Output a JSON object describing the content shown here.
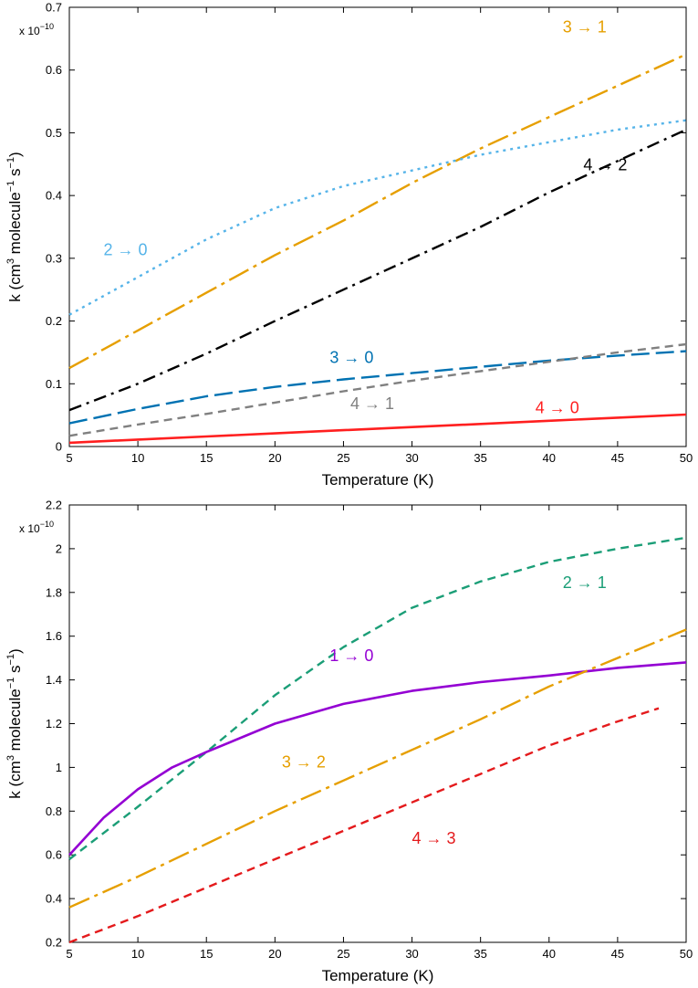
{
  "chart_data": [
    {
      "type": "line",
      "panel": "top",
      "xlabel": "Temperature (K)",
      "ylabel": "k (cm",
      "ylabel_parts": {
        "unit_prefix": "k (cm",
        "sup1": "3",
        "mid": " molecule",
        "sup2": "−1",
        "mid2": " s",
        "sup3": "−1",
        "close": ")"
      },
      "multiplier": {
        "base": "x 10",
        "exp": "−10"
      },
      "xlim": [
        5,
        50
      ],
      "ylim": [
        0,
        0.7
      ],
      "xticks": [
        "5",
        "10",
        "15",
        "20",
        "25",
        "30",
        "35",
        "40",
        "45",
        "50"
      ],
      "yticks": [
        "0",
        "0.1",
        "0.2",
        "0.3",
        "0.4",
        "0.5",
        "0.6",
        "0.7"
      ],
      "series": [
        {
          "name": "3 → 1",
          "color": "#E69F00",
          "dash": "longdashdot",
          "x": [
            5,
            10,
            15,
            20,
            25,
            30,
            35,
            40,
            45,
            50
          ],
          "y": [
            0.125,
            0.185,
            0.245,
            0.305,
            0.36,
            0.42,
            0.475,
            0.525,
            0.575,
            0.625
          ]
        },
        {
          "name": "2 → 0",
          "color": "#56B4E9",
          "dash": "dotted",
          "x": [
            5,
            10,
            15,
            20,
            25,
            30,
            35,
            40,
            45,
            50
          ],
          "y": [
            0.21,
            0.27,
            0.33,
            0.38,
            0.415,
            0.44,
            0.465,
            0.485,
            0.505,
            0.52
          ]
        },
        {
          "name": "4 → 2",
          "color": "#000000",
          "dash": "dashdot",
          "x": [
            5,
            10,
            15,
            20,
            25,
            30,
            35,
            40,
            45,
            50
          ],
          "y": [
            0.058,
            0.1,
            0.148,
            0.2,
            0.25,
            0.3,
            0.35,
            0.405,
            0.455,
            0.505
          ]
        },
        {
          "name": "3 → 0",
          "color": "#0072B2",
          "dash": "longdash",
          "x": [
            5,
            10,
            15,
            20,
            25,
            30,
            35,
            40,
            45,
            50
          ],
          "y": [
            0.037,
            0.06,
            0.08,
            0.095,
            0.107,
            0.117,
            0.127,
            0.137,
            0.145,
            0.152
          ]
        },
        {
          "name": "4 → 1",
          "color": "#808080",
          "dash": "dashed",
          "x": [
            5,
            10,
            15,
            20,
            25,
            30,
            35,
            40,
            45,
            50
          ],
          "y": [
            0.017,
            0.035,
            0.052,
            0.07,
            0.088,
            0.105,
            0.12,
            0.135,
            0.15,
            0.163
          ]
        },
        {
          "name": "4 → 0",
          "color": "#FF1F1F",
          "dash": "solid",
          "x": [
            5,
            10,
            15,
            20,
            25,
            30,
            35,
            40,
            45,
            50
          ],
          "y": [
            0.006,
            0.011,
            0.016,
            0.021,
            0.026,
            0.031,
            0.036,
            0.041,
            0.046,
            0.051
          ]
        }
      ],
      "annotations": [
        {
          "text": "3 → 1",
          "color": "#E69F00",
          "x": 41,
          "y": 0.66
        },
        {
          "text": "2 → 0",
          "color": "#56B4E9",
          "x": 7.5,
          "y": 0.305
        },
        {
          "text": "4 → 2",
          "color": "#000000",
          "x": 42.5,
          "y": 0.44
        },
        {
          "text": "3 → 0",
          "color": "#0072B2",
          "x": 24,
          "y": 0.133
        },
        {
          "text": "4 → 1",
          "color": "#808080",
          "x": 25.5,
          "y": 0.06
        },
        {
          "text": "4 → 0",
          "color": "#FF1F1F",
          "x": 39,
          "y": 0.053
        }
      ]
    },
    {
      "type": "line",
      "panel": "bottom",
      "xlabel": "Temperature (K)",
      "ylabel": "k (cm",
      "ylabel_parts": {
        "unit_prefix": "k (cm",
        "sup1": "3",
        "mid": " molecule",
        "sup2": "−1",
        "mid2": " s",
        "sup3": "−1",
        "close": ")"
      },
      "multiplier": {
        "base": "x 10",
        "exp": "−10"
      },
      "xlim": [
        5,
        50
      ],
      "ylim": [
        0.2,
        2.2
      ],
      "xticks": [
        "5",
        "10",
        "15",
        "20",
        "25",
        "30",
        "35",
        "40",
        "45",
        "50"
      ],
      "yticks": [
        "0.2",
        "0.4",
        "0.6",
        "0.8",
        "1",
        "1.2",
        "1.4",
        "1.6",
        "1.8",
        "2",
        "2.2"
      ],
      "series": [
        {
          "name": "2 → 1",
          "color": "#1B9E77",
          "dash": "dashed",
          "x": [
            5,
            10,
            15,
            20,
            25,
            30,
            35,
            40,
            45,
            50
          ],
          "y": [
            0.58,
            0.82,
            1.07,
            1.33,
            1.55,
            1.73,
            1.85,
            1.94,
            2.0,
            2.05
          ]
        },
        {
          "name": "1 → 0",
          "color": "#9400D3",
          "dash": "solid",
          "x": [
            5,
            7.5,
            10,
            12.5,
            15,
            20,
            25,
            30,
            35,
            40,
            45,
            50
          ],
          "y": [
            0.6,
            0.77,
            0.9,
            1.0,
            1.07,
            1.2,
            1.29,
            1.35,
            1.39,
            1.42,
            1.455,
            1.48
          ]
        },
        {
          "name": "3 → 2",
          "color": "#E69F00",
          "dash": "longdashdot",
          "x": [
            5,
            10,
            15,
            20,
            25,
            30,
            35,
            40,
            45,
            50
          ],
          "y": [
            0.36,
            0.5,
            0.65,
            0.8,
            0.94,
            1.08,
            1.22,
            1.37,
            1.5,
            1.63
          ]
        },
        {
          "name": "4 → 3",
          "color": "#E41A1C",
          "dash": "dashed",
          "x": [
            5,
            10,
            15,
            20,
            25,
            30,
            35,
            40,
            45,
            48
          ],
          "y": [
            0.2,
            0.32,
            0.45,
            0.58,
            0.71,
            0.84,
            0.97,
            1.1,
            1.21,
            1.27
          ]
        }
      ],
      "annotations": [
        {
          "text": "2 → 1",
          "color": "#1B9E77",
          "x": 41,
          "y": 1.82
        },
        {
          "text": "1 → 0",
          "color": "#9400D3",
          "x": 24,
          "y": 1.485
        },
        {
          "text": "3 → 2",
          "color": "#E69F00",
          "x": 20.5,
          "y": 1.0
        },
        {
          "text": "4 → 3",
          "color": "#E41A1C",
          "x": 30,
          "y": 0.65
        }
      ]
    }
  ]
}
